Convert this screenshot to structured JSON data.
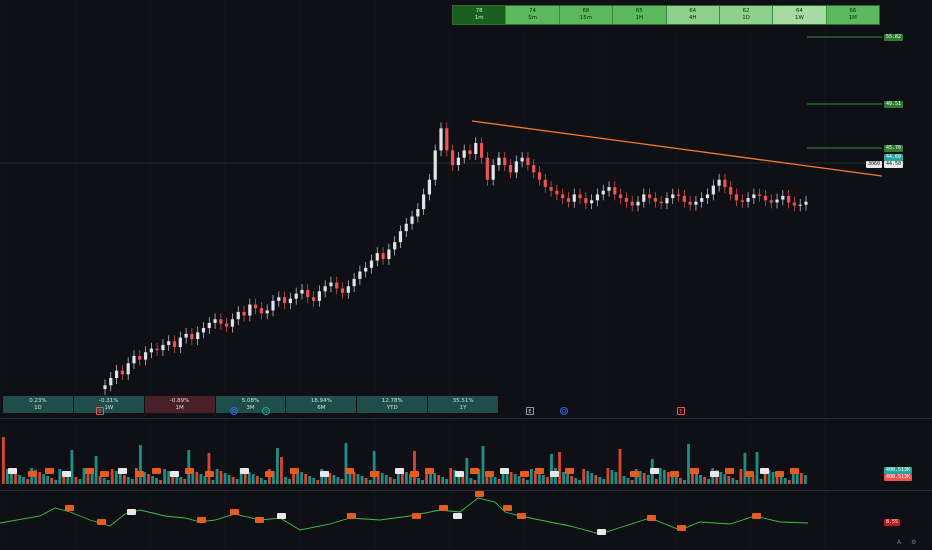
{
  "timeframes": [
    {
      "value": "78",
      "label": "1m"
    },
    {
      "value": "74",
      "label": "5m"
    },
    {
      "value": "68",
      "label": "15m"
    },
    {
      "value": "65",
      "label": "1H"
    },
    {
      "value": "64",
      "label": "4H"
    },
    {
      "value": "62",
      "label": "1D"
    },
    {
      "value": "64",
      "label": "1W"
    },
    {
      "value": "66",
      "label": "1M"
    }
  ],
  "performance": [
    {
      "value": "0.23%",
      "label": "1D",
      "color": "#1f4d4a"
    },
    {
      "value": "-0.31%",
      "label": "1W",
      "color": "#1f4d4a"
    },
    {
      "value": "-0.89%",
      "label": "1M",
      "color": "#4a1f28"
    },
    {
      "value": "5.08%",
      "label": "3M",
      "color": "#1f4d4a"
    },
    {
      "value": "18.94%",
      "label": "6M",
      "color": "#1f4d4a"
    },
    {
      "value": "12.78%",
      "label": "YTD",
      "color": "#1f4d4a"
    },
    {
      "value": "35.51%",
      "label": "1Y",
      "color": "#1f4d4a"
    }
  ],
  "price_labels": {
    "level1": "55.82",
    "level2": "49.51",
    "level3": "45.70",
    "current": "44.50",
    "current_alt": "44.60",
    "close_small": "3060",
    "volume_a": "400.513K",
    "volume_b": "400.513K",
    "osc": "8.55"
  },
  "events": [
    "E",
    "D",
    "E"
  ],
  "colors": {
    "up": "#26a69a",
    "down": "#ef5350",
    "candle_up": "#e0e3eb",
    "candle_down": "#ef5350",
    "trendline": "#f57c2a",
    "level": "#4caf50",
    "tf_strong": "#1b5e20",
    "tf_mid": "#43a047",
    "tf_light": "#81c784"
  },
  "chart_data": {
    "type": "candlestick",
    "close": [
      20,
      21,
      22,
      21.5,
      23,
      24,
      23.5,
      24.5,
      25,
      24.8,
      25.5,
      26,
      25.2,
      26.5,
      27,
      26.3,
      27.2,
      27.8,
      28.5,
      29,
      28.4,
      28,
      29,
      30,
      29.5,
      31,
      30.5,
      29.8,
      30.2,
      31.5,
      32,
      31.2,
      31.8,
      32.5,
      33,
      32,
      31.5,
      32.8,
      33.5,
      34,
      33.2,
      32.6,
      33.5,
      34.5,
      35.5,
      36,
      37,
      38,
      37.2,
      38.5,
      39.5,
      41,
      42,
      43,
      44,
      46,
      48,
      52,
      55,
      52,
      50,
      51,
      52,
      51.5,
      53,
      51,
      48,
      50,
      51,
      50,
      49,
      50.5,
      51,
      50,
      49,
      48,
      47,
      46.5,
      46,
      45.5,
      45,
      46,
      45.5,
      44.8,
      45.2,
      46,
      46.5,
      47,
      46,
      45.5,
      45,
      44.5,
      45,
      46,
      45.5,
      45,
      44.8,
      45.5,
      46,
      45.8,
      45,
      44.6,
      45,
      45.5,
      46,
      47.2,
      48,
      47,
      46,
      45.2,
      45,
      45.5,
      46,
      45.8,
      45.2,
      44.9,
      45.3,
      45.8,
      44.9,
      44.5,
      44.6,
      45
    ]
  }
}
